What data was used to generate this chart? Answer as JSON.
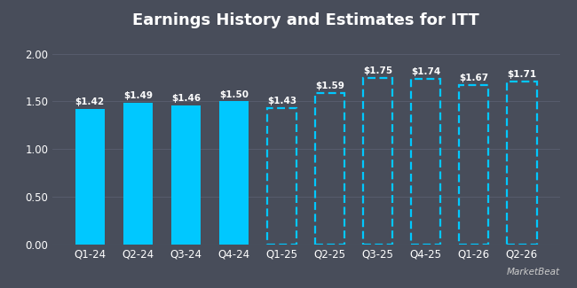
{
  "title": "Earnings History and Estimates for ITT",
  "categories": [
    "Q1-24",
    "Q2-24",
    "Q3-24",
    "Q4-24",
    "Q1-25",
    "Q2-25",
    "Q3-25",
    "Q4-25",
    "Q1-26",
    "Q2-26"
  ],
  "values": [
    1.42,
    1.49,
    1.46,
    1.5,
    1.43,
    1.59,
    1.75,
    1.74,
    1.67,
    1.71
  ],
  "labels": [
    "$1.42",
    "$1.49",
    "$1.46",
    "$1.50",
    "$1.43",
    "$1.59",
    "$1.75",
    "$1.74",
    "$1.67",
    "$1.71"
  ],
  "is_estimate": [
    false,
    false,
    false,
    false,
    true,
    true,
    true,
    true,
    true,
    true
  ],
  "solid_color": "#00c8ff",
  "dashed_color": "#00c8ff",
  "background_color": "#484d5a",
  "text_color": "#ffffff",
  "grid_color": "#5a6070",
  "yticks": [
    0.0,
    0.5,
    1.0,
    1.5,
    2.0
  ],
  "ylim": [
    0,
    2.2
  ],
  "title_fontsize": 13,
  "label_fontsize": 7.5,
  "tick_fontsize": 8.5,
  "bar_width": 0.62,
  "marketbeat_text": "MarketBeat"
}
